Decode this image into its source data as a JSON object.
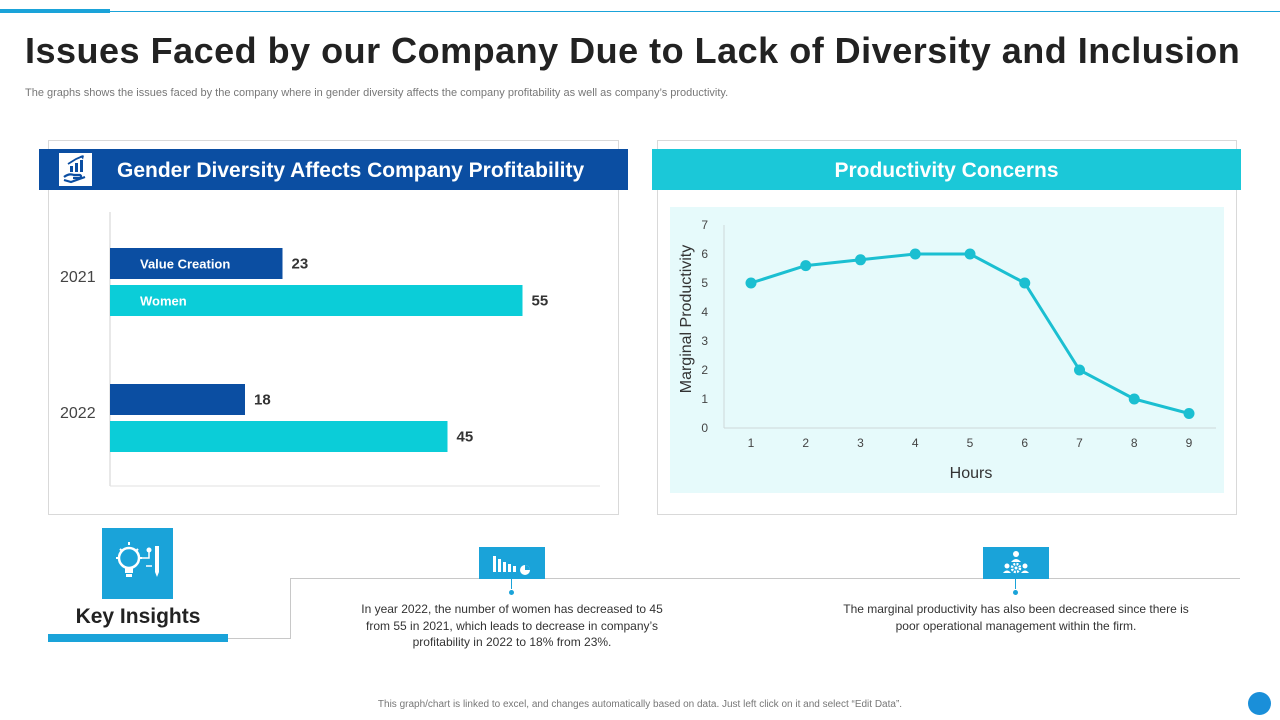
{
  "page": {
    "title": "Issues Faced by our Company Due to Lack of Diversity and Inclusion",
    "subtitle": "The graphs shows the issues faced by the company where in gender diversity affects the company profitability as well as company’s productivity.",
    "footer_note": "This graph/chart is linked to excel, and changes automatically based on data. Just left click on it and select “Edit Data”."
  },
  "colors": {
    "accent": "#1aa3d9",
    "dark_blue": "#0b4ea2",
    "teal": "#1bc8d8",
    "chart_bg": "#e6fafb",
    "line": "#1bbfd1"
  },
  "icons": {
    "left_header": "hand-growth-icon",
    "key_insights": "lightbulb-idea-icon",
    "insight_1": "bar-chart-icon",
    "insight_2": "team-gear-icon"
  },
  "left_panel": {
    "header": "Gender Diversity Affects Company Profitability"
  },
  "right_panel": {
    "header": "Productivity Concerns"
  },
  "key_insights": {
    "title": "Key Insights",
    "items": [
      "In year 2022, the number of women has decreased to 45 from 55 in 2021, which leads to decrease in company’s profitability in 2022 to 18% from 23%.",
      "The marginal productivity has also been decreased since there is poor operational management within the firm."
    ]
  },
  "chart_data": [
    {
      "type": "bar",
      "orientation": "horizontal",
      "title": "Gender Diversity Affects Company Profitability",
      "categories": [
        "2021",
        "2022"
      ],
      "series": [
        {
          "name": "Value Creation",
          "values": [
            23,
            18
          ],
          "color": "#0b4ea2"
        },
        {
          "name": "Women",
          "values": [
            55,
            45
          ],
          "color": "#0bcdd8"
        }
      ],
      "xlim": [
        0,
        60
      ]
    },
    {
      "type": "line",
      "title": "Productivity Concerns",
      "x": [
        1,
        2,
        3,
        4,
        5,
        6,
        7,
        8,
        9
      ],
      "y": [
        5,
        5.6,
        5.8,
        6,
        6,
        5,
        2,
        1,
        0.5
      ],
      "xlabel": "Hours",
      "ylabel": "Marginal Productivity",
      "ylim": [
        0,
        7
      ],
      "yticks": [
        0,
        1,
        2,
        3,
        4,
        5,
        6,
        7
      ],
      "grid": false
    }
  ]
}
